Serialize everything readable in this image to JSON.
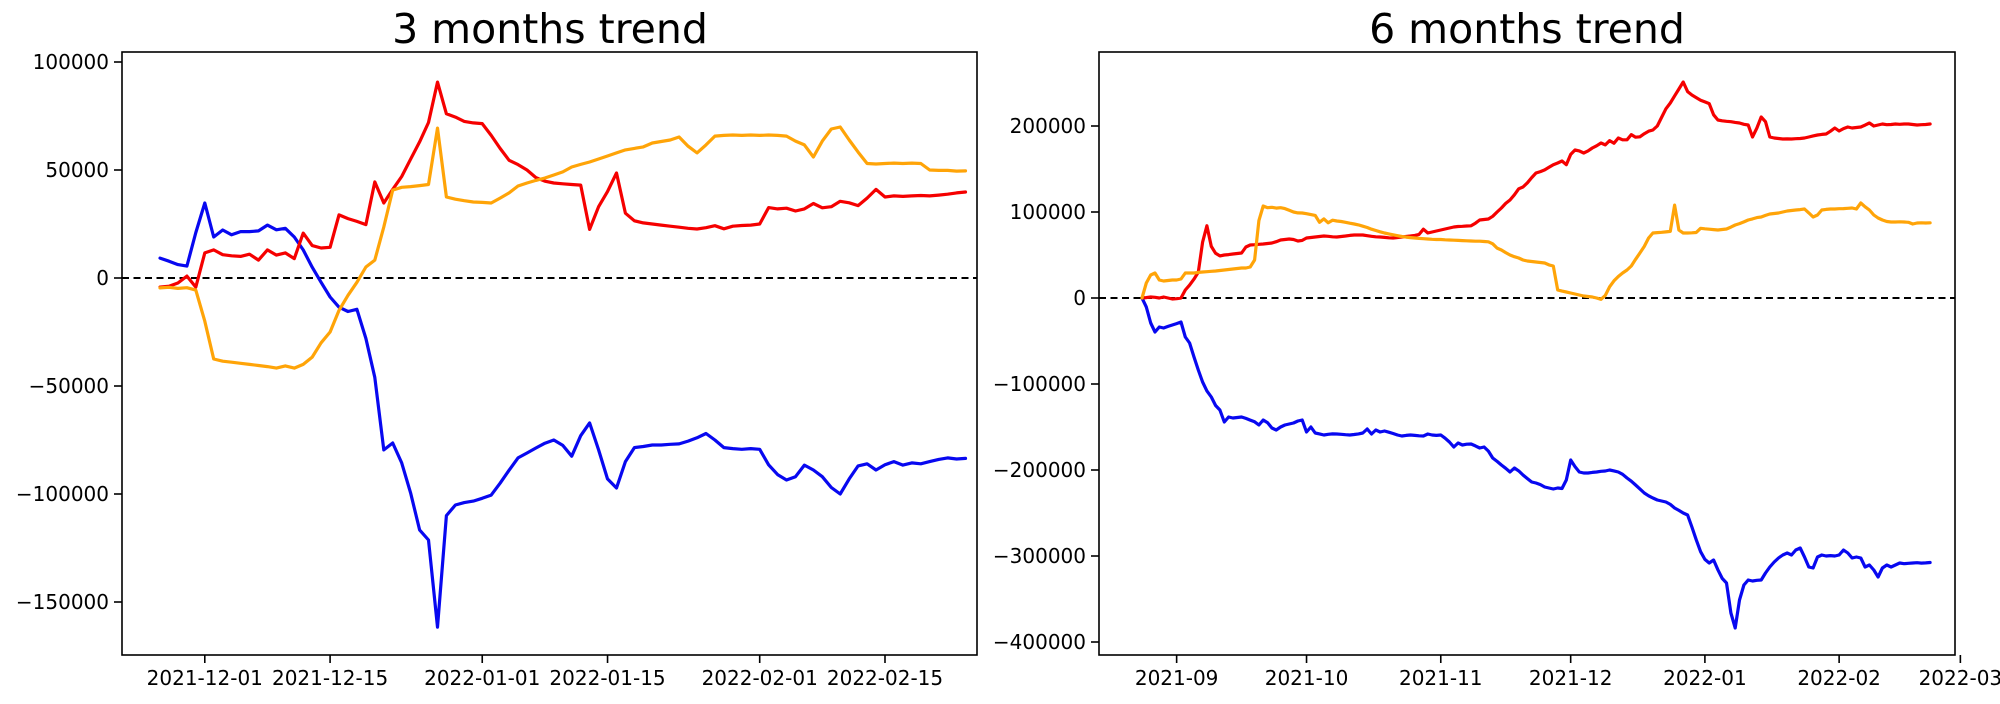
{
  "figure": {
    "background": "#ffffff",
    "text_color": "#000000"
  },
  "chart_data": [
    {
      "type": "line",
      "title": "3 months trend",
      "xlabel": "",
      "ylabel": "",
      "grid": false,
      "legend": "none",
      "zero_line": {
        "show": true,
        "color": "#000000",
        "style": "dashed"
      },
      "x_tick_labels": [
        "2021-12-01",
        "2021-12-15",
        "2022-01-01",
        "2022-01-15",
        "2022-02-01",
        "2022-02-15"
      ],
      "x_tick_days": [
        5,
        19,
        36,
        50,
        67,
        81
      ],
      "x_start_day": 0,
      "xlim_days": [
        -4.25,
        91.28
      ],
      "y_ticks": [
        100000,
        50000,
        0,
        -50000,
        -100000,
        -150000
      ],
      "ylim": [
        -174537,
        104630
      ],
      "series": [
        {
          "name": "blue-series",
          "color": "#0808f0",
          "values": [
            9200,
            7800,
            6200,
            5500,
            21000,
            34700,
            19000,
            22200,
            20000,
            21500,
            21500,
            21800,
            24500,
            22300,
            23000,
            19000,
            13000,
            5000,
            -2000,
            -8800,
            -13500,
            -15500,
            -14500,
            -28000,
            -46000,
            -79600,
            -76400,
            -85600,
            -99500,
            -116600,
            -121300,
            -161600,
            -110000,
            -105100,
            -104000,
            -103300,
            -102000,
            -100500,
            -95000,
            -89000,
            -83300,
            -81000,
            -78700,
            -76500,
            -75000,
            -77500,
            -82500,
            -73000,
            -67100,
            -79600,
            -93000,
            -97200,
            -85000,
            -78500,
            -78000,
            -77300,
            -77300,
            -77000,
            -76800,
            -75500,
            -74000,
            -72000,
            -75000,
            -78500,
            -79000,
            -79300,
            -79000,
            -79300,
            -86500,
            -91000,
            -93500,
            -92000,
            -86600,
            -88900,
            -92000,
            -97000,
            -100000,
            -93000,
            -87000,
            -86000,
            -88900,
            -86500,
            -85000,
            -86600,
            -85600,
            -86000,
            -85000,
            -84000,
            -83300,
            -83800,
            -83500
          ]
        },
        {
          "name": "red-series",
          "color": "#f50000",
          "values": [
            -4200,
            -3800,
            -2300,
            900,
            -4200,
            11600,
            13000,
            10800,
            10300,
            10000,
            11000,
            8300,
            13000,
            10600,
            11600,
            9000,
            20800,
            15000,
            13900,
            14200,
            29200,
            27500,
            26200,
            24700,
            44500,
            34700,
            41000,
            47000,
            55000,
            63000,
            72000,
            90700,
            76000,
            74500,
            72500,
            71800,
            71500,
            66000,
            60000,
            54500,
            52500,
            50000,
            46500,
            44800,
            44000,
            43600,
            43300,
            43000,
            22500,
            33000,
            40000,
            48600,
            30000,
            26500,
            25500,
            25000,
            24500,
            24000,
            23500,
            23000,
            22700,
            23300,
            24200,
            22800,
            24000,
            24300,
            24500,
            25000,
            32600,
            32000,
            32300,
            31000,
            32000,
            34500,
            32500,
            33000,
            35500,
            34800,
            33500,
            37000,
            41000,
            37500,
            38000,
            37800,
            38000,
            38200,
            38000,
            38400,
            38800,
            39400,
            39800
          ]
        },
        {
          "name": "orange-series",
          "color": "#ffa408",
          "values": [
            -4600,
            -4300,
            -4800,
            -4500,
            -5600,
            -20000,
            -37500,
            -38500,
            -39000,
            -39500,
            -40000,
            -40500,
            -41000,
            -41700,
            -40700,
            -41700,
            -40000,
            -36600,
            -30000,
            -25000,
            -15000,
            -8000,
            -2000,
            5100,
            8300,
            23600,
            40700,
            42000,
            42300,
            42800,
            43300,
            69400,
            37500,
            36500,
            35800,
            35200,
            35000,
            34700,
            37000,
            39400,
            42600,
            44000,
            45200,
            46300,
            47700,
            49100,
            51400,
            52600,
            53700,
            55100,
            56500,
            57900,
            59300,
            60000,
            60700,
            62500,
            63200,
            63900,
            65300,
            61000,
            57900,
            61600,
            65700,
            66000,
            66200,
            66000,
            66200,
            66000,
            66200,
            66000,
            65700,
            63400,
            61600,
            56000,
            63400,
            69000,
            69900,
            63900,
            58300,
            53000,
            52800,
            53000,
            53200,
            53000,
            53200,
            53000,
            50000,
            49800,
            49800,
            49500,
            49600
          ]
        }
      ]
    },
    {
      "type": "line",
      "title": "6 months trend",
      "xlabel": "",
      "ylabel": "",
      "grid": false,
      "legend": "none",
      "zero_line": {
        "show": true,
        "color": "#000000",
        "style": "dashed"
      },
      "x_tick_labels": [
        "2021-09",
        "2021-10",
        "2021-11",
        "2021-12",
        "2022-01",
        "2022-02",
        "2022-03"
      ],
      "x_tick_days": [
        8,
        38,
        69,
        99,
        130,
        161,
        189
      ],
      "x_start_day": 0,
      "xlim_days": [
        -9.93,
        187.76
      ],
      "y_ticks": [
        200000,
        100000,
        0,
        -100000,
        -200000,
        -300000,
        -400000
      ],
      "ylim": [
        -415116,
        286047
      ],
      "series": [
        {
          "name": "blue-series",
          "color": "#0808f0",
          "values": [
            0,
            -10500,
            -29100,
            -39500,
            -33700,
            -34900,
            -33000,
            -31400,
            -29800,
            -27900,
            -45300,
            -52300,
            -68600,
            -83700,
            -97700,
            -108000,
            -115100,
            -125000,
            -130200,
            -144200,
            -138400,
            -139500,
            -139000,
            -138400,
            -140000,
            -142000,
            -144000,
            -147700,
            -141900,
            -145000,
            -151200,
            -153500,
            -150000,
            -147700,
            -146500,
            -145300,
            -143000,
            -141900,
            -155800,
            -150000,
            -157000,
            -158000,
            -159300,
            -158500,
            -158000,
            -158100,
            -158500,
            -159000,
            -159300,
            -158700,
            -158000,
            -157000,
            -152300,
            -158100,
            -153500,
            -155800,
            -154700,
            -156000,
            -157500,
            -159300,
            -160500,
            -159800,
            -159300,
            -159800,
            -160200,
            -160500,
            -158100,
            -159300,
            -159800,
            -159300,
            -163000,
            -167400,
            -173300,
            -168600,
            -170900,
            -170000,
            -169800,
            -172000,
            -174400,
            -173300,
            -178000,
            -186000,
            -190000,
            -194200,
            -198000,
            -202300,
            -197700,
            -201000,
            -205800,
            -210000,
            -214000,
            -215100,
            -217000,
            -219800,
            -220900,
            -222100,
            -220900,
            -221500,
            -211600,
            -188400,
            -196000,
            -202300,
            -203500,
            -203500,
            -202800,
            -202300,
            -201500,
            -201200,
            -200000,
            -201000,
            -202300,
            -205000,
            -209300,
            -213000,
            -217400,
            -222000,
            -226700,
            -230000,
            -232600,
            -234900,
            -236000,
            -237200,
            -240000,
            -244200,
            -247000,
            -250000,
            -252300,
            -266300,
            -281000,
            -295000,
            -304000,
            -308100,
            -304700,
            -316000,
            -326000,
            -331400,
            -366300,
            -383700,
            -351200,
            -333700,
            -327900,
            -329100,
            -328200,
            -327900,
            -319800,
            -312800,
            -307000,
            -302300,
            -298800,
            -296500,
            -298800,
            -293000,
            -290700,
            -301200,
            -312800,
            -314000,
            -301200,
            -298800,
            -300000,
            -299500,
            -300000,
            -298800,
            -293000,
            -296500,
            -302300,
            -301200,
            -302300,
            -312800,
            -310500,
            -316300,
            -324400,
            -314000,
            -310500,
            -312800,
            -310500,
            -308100,
            -309000,
            -308500,
            -308100,
            -307800,
            -308300,
            -308000,
            -307500
          ]
        },
        {
          "name": "red-series",
          "color": "#f50000",
          "values": [
            0,
            500,
            1200,
            800,
            0,
            1200,
            0,
            -1200,
            -800,
            0,
            9300,
            15000,
            22000,
            30000,
            65000,
            84000,
            60000,
            52000,
            49000,
            50000,
            50500,
            51200,
            51800,
            52300,
            59300,
            61600,
            62000,
            62400,
            62800,
            63400,
            64000,
            65500,
            67400,
            68000,
            68600,
            68000,
            66300,
            67000,
            69800,
            70400,
            70900,
            71500,
            72100,
            71800,
            71200,
            70900,
            71500,
            72100,
            72800,
            73300,
            73300,
            73300,
            72500,
            71800,
            71200,
            70900,
            70500,
            70000,
            69800,
            70300,
            70900,
            71500,
            72100,
            72800,
            74000,
            80000,
            75600,
            76700,
            77900,
            79100,
            80200,
            81400,
            82600,
            83100,
            83400,
            83700,
            84000,
            87000,
            90700,
            91300,
            91900,
            95000,
            100000,
            104700,
            110000,
            114000,
            120000,
            127000,
            129100,
            134000,
            140000,
            145300,
            147000,
            149000,
            152000,
            155000,
            157000,
            159300,
            155000,
            167000,
            172100,
            171000,
            168600,
            171000,
            174400,
            177000,
            180200,
            178000,
            183000,
            180000,
            186000,
            184000,
            184000,
            190000,
            187000,
            187500,
            191000,
            194000,
            195300,
            200000,
            210000,
            220000,
            226700,
            235000,
            243000,
            251200,
            240000,
            236000,
            233000,
            230000,
            228000,
            226000,
            213000,
            207000,
            206000,
            205500,
            205000,
            204200,
            203500,
            202000,
            201200,
            187200,
            197700,
            210500,
            205000,
            187200,
            186000,
            185500,
            184900,
            185000,
            184900,
            185200,
            185500,
            186000,
            187200,
            188500,
            189500,
            190200,
            190700,
            194000,
            197700,
            194200,
            197000,
            198800,
            197700,
            198300,
            198800,
            201000,
            203500,
            200000,
            201200,
            202300,
            201500,
            201800,
            202300,
            202000,
            202300,
            202300,
            201800,
            201200,
            201500,
            201800,
            202300
          ]
        },
        {
          "name": "orange-series",
          "color": "#ffa408",
          "values": [
            0,
            17400,
            26700,
            29100,
            20900,
            19800,
            20300,
            20900,
            20900,
            22100,
            29100,
            29100,
            29100,
            29800,
            30200,
            30600,
            31000,
            31400,
            32000,
            32600,
            33100,
            33700,
            34300,
            34900,
            34900,
            36000,
            44200,
            90000,
            107000,
            105000,
            105500,
            104500,
            105000,
            104000,
            102000,
            100000,
            99000,
            98800,
            98000,
            97000,
            96000,
            88000,
            92000,
            87500,
            90500,
            89500,
            89000,
            88000,
            87000,
            86000,
            85000,
            83500,
            82000,
            80000,
            78500,
            77000,
            75600,
            74500,
            73500,
            72500,
            71500,
            70800,
            70200,
            69800,
            69300,
            68900,
            68600,
            68300,
            68000,
            68000,
            67700,
            67400,
            67200,
            67000,
            66800,
            66500,
            66300,
            66000,
            66000,
            65700,
            65400,
            63000,
            58000,
            55800,
            52800,
            50000,
            48000,
            46500,
            44200,
            43000,
            42500,
            41900,
            41300,
            40700,
            38500,
            37200,
            9300,
            8000,
            7000,
            5800,
            4700,
            3500,
            2300,
            1800,
            1200,
            0,
            -1500,
            3000,
            13000,
            20000,
            25000,
            29100,
            32600,
            37200,
            45000,
            52300,
            60000,
            69800,
            75600,
            76000,
            76400,
            76900,
            77500,
            108000,
            79000,
            75600,
            75600,
            75800,
            76200,
            81000,
            80500,
            80000,
            79500,
            79100,
            79600,
            80200,
            82500,
            84900,
            86500,
            88500,
            90700,
            92000,
            93500,
            94200,
            96000,
            97700,
            98200,
            98800,
            100000,
            101200,
            101800,
            102300,
            102800,
            103500,
            99000,
            94200,
            96500,
            102300,
            103000,
            103500,
            103500,
            103800,
            104000,
            104300,
            104700,
            103500,
            110500,
            106000,
            102300,
            96500,
            93000,
            90700,
            89000,
            88400,
            88400,
            88600,
            88400,
            88000,
            86000,
            87200,
            87500,
            87200,
            87400
          ]
        }
      ]
    }
  ]
}
